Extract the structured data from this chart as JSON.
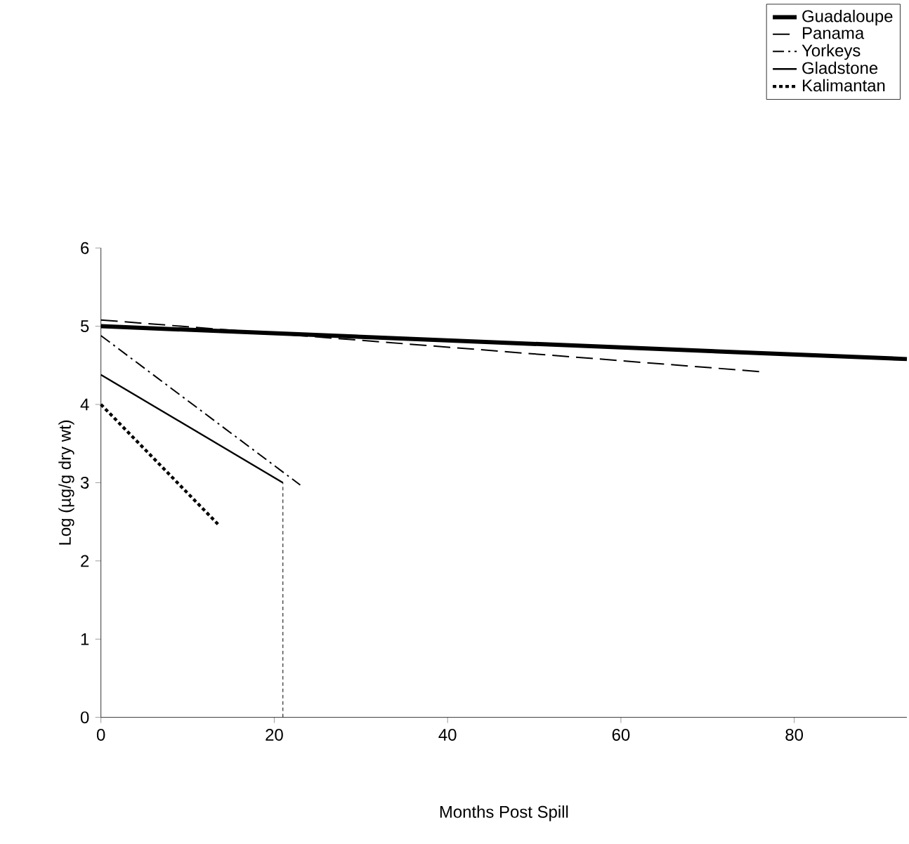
{
  "chart_data": {
    "type": "line",
    "xlabel": "Months Post Spill",
    "ylabel": "Log (µg/g dry wt)",
    "xlim": [
      0,
      93
    ],
    "ylim": [
      0,
      6
    ],
    "xticks": [
      0,
      20,
      40,
      60,
      80
    ],
    "yticks": [
      0,
      1,
      2,
      3,
      4,
      5,
      6
    ],
    "legend": "top right",
    "grid": false,
    "marker": "none",
    "series": [
      {
        "name": "Guadaloupe",
        "color": "#000000",
        "line_style": "solid",
        "x": [
          0,
          93
        ],
        "values": [
          5.0,
          4.58
        ]
      },
      {
        "name": "Panama",
        "color": "#000000",
        "line_style": "dashed",
        "x": [
          0,
          76
        ],
        "values": [
          5.08,
          4.42
        ]
      },
      {
        "name": "Yorkeys",
        "color": "#000000",
        "line_style": "dashdot",
        "x": [
          0,
          23
        ],
        "values": [
          4.88,
          2.97
        ]
      },
      {
        "name": "Gladstone",
        "color": "#000000",
        "line_style": "solid",
        "x": [
          0,
          21
        ],
        "values": [
          4.38,
          3.0
        ]
      },
      {
        "name": "Kalimantan",
        "color": "#000000",
        "line_style": "dotted",
        "x": [
          0,
          13.5
        ],
        "values": [
          4.0,
          2.47
        ]
      },
      {
        "color": "#000000",
        "line_style": "dotted",
        "x": [
          21,
          21
        ],
        "values": [
          0,
          3.0
        ]
      }
    ]
  }
}
